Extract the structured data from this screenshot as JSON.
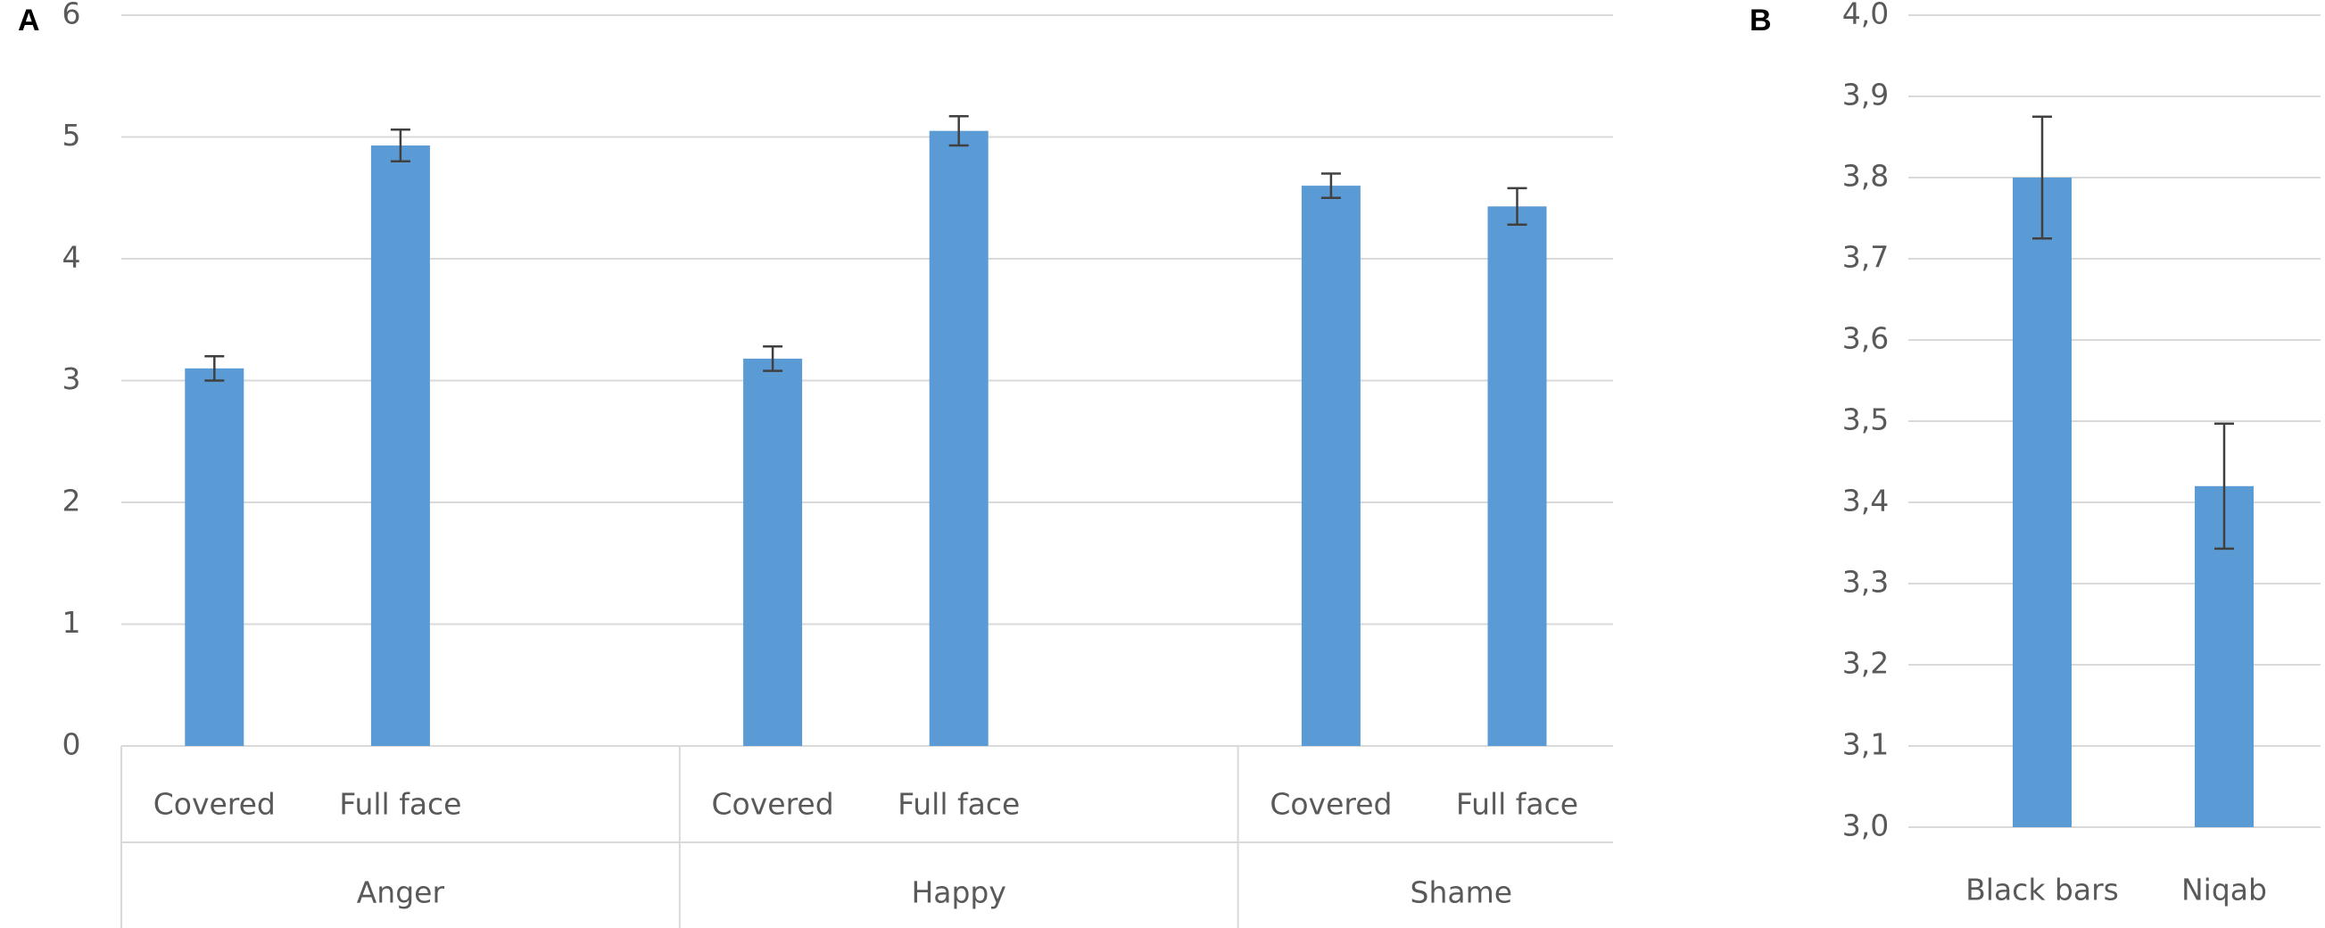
{
  "chart_data": [
    {
      "type": "bar",
      "panel": "A",
      "groups": [
        "Anger",
        "Happy",
        "Shame"
      ],
      "categories": [
        "Covered",
        "Full face",
        "Covered",
        "Full face",
        "Covered",
        "Full face"
      ],
      "values": [
        3.1,
        4.93,
        3.18,
        5.05,
        4.6,
        4.43
      ],
      "errors": [
        0.1,
        0.13,
        0.1,
        0.12,
        0.1,
        0.15
      ],
      "color": "#5b9bd5",
      "ylim": [
        0,
        6
      ],
      "yticks": [
        0,
        1,
        2,
        3,
        4,
        5,
        6
      ],
      "grid": true
    },
    {
      "type": "bar",
      "panel": "B",
      "categories": [
        "Black bars",
        "Niqab"
      ],
      "values": [
        3.8,
        3.42
      ],
      "errors": [
        0.075,
        0.077
      ],
      "color": "#5b9bd5",
      "ylim": [
        3.0,
        4.0
      ],
      "yticks": [
        {
          "value": 3.0,
          "label": "3,0"
        },
        {
          "value": 3.1,
          "label": "3,1"
        },
        {
          "value": 3.2,
          "label": "3,2"
        },
        {
          "value": 3.3,
          "label": "3,3"
        },
        {
          "value": 3.4,
          "label": "3,4"
        },
        {
          "value": 3.5,
          "label": "3,5"
        },
        {
          "value": 3.6,
          "label": "3,6"
        },
        {
          "value": 3.7,
          "label": "3,7"
        },
        {
          "value": 3.8,
          "label": "3,8"
        },
        {
          "value": 3.9,
          "label": "3,9"
        },
        {
          "value": 4.0,
          "label": "4,0"
        }
      ],
      "grid": true
    }
  ]
}
